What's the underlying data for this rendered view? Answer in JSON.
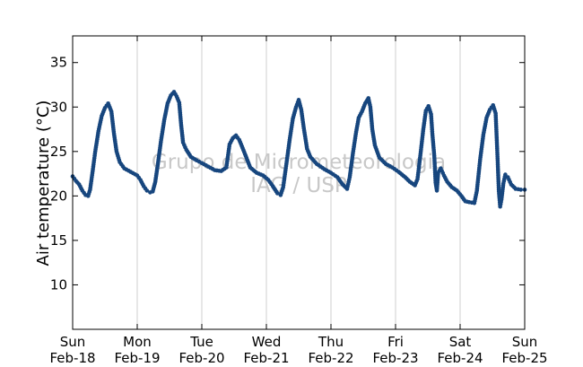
{
  "chart_data": {
    "type": "scatter",
    "title": "",
    "xlabel": "",
    "ylabel": "Air temperature (°C)",
    "xlim": [
      0,
      7
    ],
    "ylim": [
      5,
      38
    ],
    "yticks": [
      10,
      15,
      20,
      25,
      30,
      35
    ],
    "xticks": [
      {
        "x": 0,
        "day": "Sun",
        "date": "Feb-18"
      },
      {
        "x": 1,
        "day": "Mon",
        "date": "Feb-19"
      },
      {
        "x": 2,
        "day": "Tue",
        "date": "Feb-20"
      },
      {
        "x": 3,
        "day": "Wed",
        "date": "Feb-21"
      },
      {
        "x": 4,
        "day": "Thu",
        "date": "Feb-22"
      },
      {
        "x": 5,
        "day": "Fri",
        "date": "Feb-23"
      },
      {
        "x": 6,
        "day": "Sat",
        "date": "Feb-24"
      },
      {
        "x": 7,
        "day": "Sun",
        "date": "Feb-25"
      }
    ],
    "grid": "vertical",
    "marker_color": "#17467e",
    "watermark": [
      "Grupo de Micrometeorologia",
      "IAG / USP"
    ],
    "series": [
      {
        "points": [
          [
            0.0,
            22.2
          ],
          [
            0.05,
            21.7
          ],
          [
            0.1,
            21.3
          ],
          [
            0.15,
            20.6
          ],
          [
            0.2,
            20.1
          ],
          [
            0.24,
            20.0
          ],
          [
            0.27,
            20.7
          ],
          [
            0.31,
            22.8
          ],
          [
            0.35,
            25.0
          ],
          [
            0.4,
            27.3
          ],
          [
            0.45,
            29.0
          ],
          [
            0.5,
            29.9
          ],
          [
            0.55,
            30.4
          ],
          [
            0.6,
            29.5
          ],
          [
            0.64,
            27.0
          ],
          [
            0.68,
            25.0
          ],
          [
            0.73,
            23.8
          ],
          [
            0.8,
            23.1
          ],
          [
            0.9,
            22.7
          ],
          [
            1.0,
            22.3
          ],
          [
            1.05,
            21.8
          ],
          [
            1.1,
            21.1
          ],
          [
            1.15,
            20.6
          ],
          [
            1.2,
            20.4
          ],
          [
            1.24,
            20.5
          ],
          [
            1.28,
            21.6
          ],
          [
            1.32,
            23.6
          ],
          [
            1.37,
            26.3
          ],
          [
            1.42,
            28.6
          ],
          [
            1.47,
            30.4
          ],
          [
            1.52,
            31.3
          ],
          [
            1.57,
            31.7
          ],
          [
            1.61,
            31.2
          ],
          [
            1.65,
            30.5
          ],
          [
            1.68,
            28.0
          ],
          [
            1.71,
            26.0
          ],
          [
            1.76,
            25.2
          ],
          [
            1.83,
            24.4
          ],
          [
            1.92,
            24.0
          ],
          [
            2.0,
            23.7
          ],
          [
            2.1,
            23.3
          ],
          [
            2.2,
            22.9
          ],
          [
            2.3,
            22.8
          ],
          [
            2.38,
            23.2
          ],
          [
            2.43,
            25.8
          ],
          [
            2.48,
            26.5
          ],
          [
            2.53,
            26.8
          ],
          [
            2.58,
            26.3
          ],
          [
            2.62,
            25.6
          ],
          [
            2.68,
            24.5
          ],
          [
            2.75,
            23.2
          ],
          [
            2.85,
            22.6
          ],
          [
            2.95,
            22.3
          ],
          [
            3.03,
            21.8
          ],
          [
            3.1,
            21.1
          ],
          [
            3.17,
            20.3
          ],
          [
            3.22,
            20.1
          ],
          [
            3.26,
            21.0
          ],
          [
            3.31,
            23.6
          ],
          [
            3.36,
            26.3
          ],
          [
            3.41,
            28.7
          ],
          [
            3.46,
            30.0
          ],
          [
            3.5,
            30.8
          ],
          [
            3.54,
            29.7
          ],
          [
            3.58,
            27.6
          ],
          [
            3.63,
            25.3
          ],
          [
            3.68,
            24.4
          ],
          [
            3.78,
            23.6
          ],
          [
            3.9,
            23.0
          ],
          [
            4.0,
            22.6
          ],
          [
            4.1,
            22.1
          ],
          [
            4.18,
            21.3
          ],
          [
            4.25,
            20.8
          ],
          [
            4.29,
            22.1
          ],
          [
            4.34,
            24.8
          ],
          [
            4.39,
            27.2
          ],
          [
            4.43,
            28.8
          ],
          [
            4.48,
            29.5
          ],
          [
            4.53,
            30.4
          ],
          [
            4.58,
            31.0
          ],
          [
            4.61,
            30.0
          ],
          [
            4.64,
            27.5
          ],
          [
            4.68,
            25.7
          ],
          [
            4.75,
            24.3
          ],
          [
            4.85,
            23.6
          ],
          [
            4.95,
            23.2
          ],
          [
            5.05,
            22.7
          ],
          [
            5.15,
            22.1
          ],
          [
            5.22,
            21.6
          ],
          [
            5.3,
            21.2
          ],
          [
            5.34,
            21.9
          ],
          [
            5.38,
            24.3
          ],
          [
            5.43,
            27.5
          ],
          [
            5.47,
            29.6
          ],
          [
            5.51,
            30.1
          ],
          [
            5.55,
            29.2
          ],
          [
            5.57,
            27.0
          ],
          [
            5.6,
            24.5
          ],
          [
            5.62,
            21.5
          ],
          [
            5.64,
            20.6
          ],
          [
            5.66,
            22.6
          ],
          [
            5.7,
            23.1
          ],
          [
            5.75,
            22.3
          ],
          [
            5.8,
            21.6
          ],
          [
            5.87,
            21.0
          ],
          [
            5.95,
            20.6
          ],
          [
            6.02,
            20.0
          ],
          [
            6.08,
            19.4
          ],
          [
            6.14,
            19.3
          ],
          [
            6.22,
            19.2
          ],
          [
            6.26,
            20.6
          ],
          [
            6.31,
            24.1
          ],
          [
            6.36,
            26.9
          ],
          [
            6.41,
            28.8
          ],
          [
            6.46,
            29.7
          ],
          [
            6.51,
            30.2
          ],
          [
            6.55,
            29.3
          ],
          [
            6.58,
            24.2
          ],
          [
            6.6,
            20.5
          ],
          [
            6.62,
            18.8
          ],
          [
            6.64,
            19.6
          ],
          [
            6.67,
            21.4
          ],
          [
            6.7,
            22.4
          ],
          [
            6.74,
            22.1
          ],
          [
            6.79,
            21.3
          ],
          [
            6.86,
            20.8
          ],
          [
            6.94,
            20.7
          ],
          [
            7.0,
            20.7
          ]
        ]
      }
    ]
  }
}
